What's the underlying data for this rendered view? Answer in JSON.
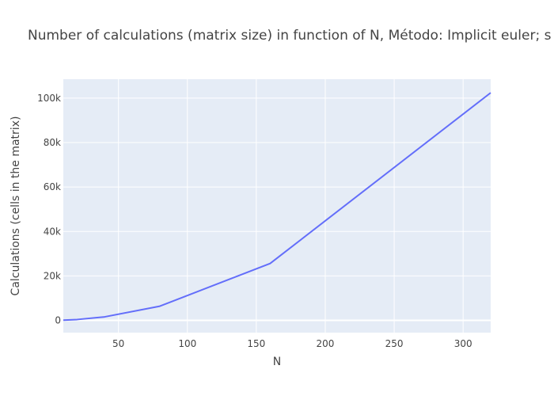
{
  "chart_data": {
    "type": "line",
    "title": "Number of calculations (matrix size) in function of N, Método: Implicit euler; s",
    "xlabel": "N",
    "ylabel": "Calculations (cells in the matrix)",
    "xlim": [
      10,
      320
    ],
    "ylim": [
      -5500,
      108500
    ],
    "grid": true,
    "x_ticks": [
      50,
      100,
      150,
      200,
      250,
      300
    ],
    "x_tick_labels": [
      "50",
      "100",
      "150",
      "200",
      "250",
      "300"
    ],
    "y_ticks": [
      0,
      20000,
      40000,
      60000,
      80000,
      100000
    ],
    "y_tick_labels": [
      "0",
      "20k",
      "40k",
      "60k",
      "80k",
      "100k"
    ],
    "series": [
      {
        "color": "#636efa",
        "x": [
          10,
          20,
          40,
          80,
          160,
          320
        ],
        "y": [
          100,
          400,
          1600,
          6400,
          25600,
          102400
        ]
      }
    ],
    "colors": {
      "plot_background": "#e5ecf6",
      "grid": "#ffffff",
      "text": "#444444"
    }
  }
}
